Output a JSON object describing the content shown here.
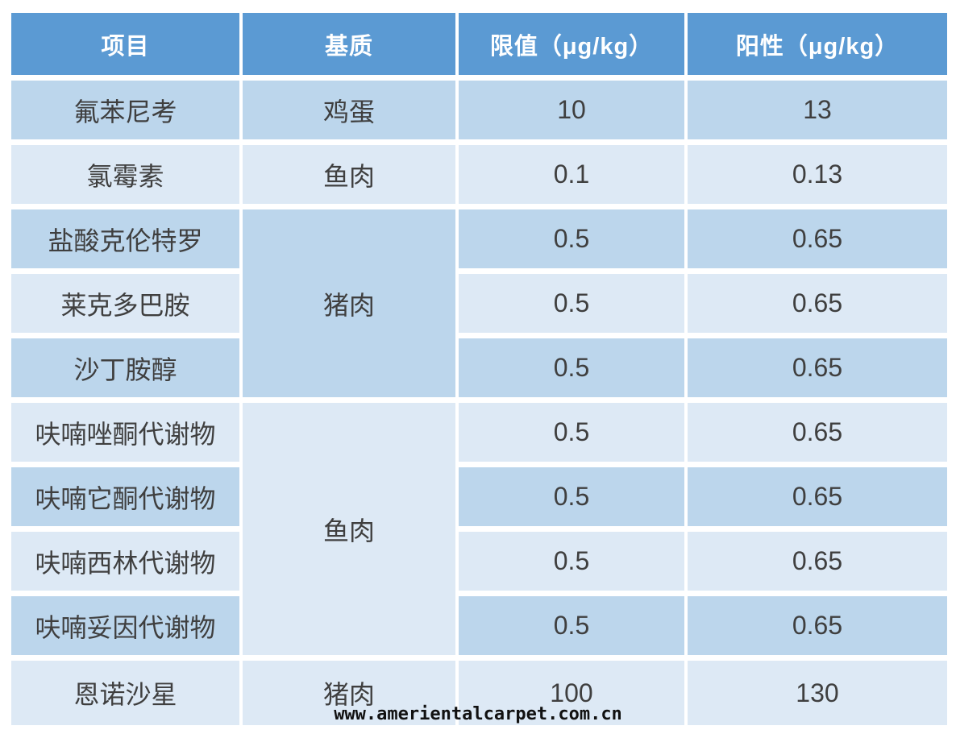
{
  "colors": {
    "header_bg": "#5b9ad3",
    "band_medium": "#bcd6ec",
    "band_light": "#dde9f5",
    "header_text": "#ffffff",
    "body_text": "#3f3f3f"
  },
  "table": {
    "headers": [
      "项目",
      "基质",
      "限值（μg/kg）",
      "阳性（μg/kg）"
    ],
    "rows": [
      {
        "item": "氟苯尼考",
        "matrix": "鸡蛋",
        "limit": "10",
        "positive": "13"
      },
      {
        "item": "氯霉素",
        "matrix": "鱼肉",
        "limit": "0.1",
        "positive": "0.13"
      },
      {
        "item": "盐酸克伦特罗",
        "matrix": "猪肉",
        "matrix_rowspan": 3,
        "limit": "0.5",
        "positive": "0.65"
      },
      {
        "item": "莱克多巴胺",
        "limit": "0.5",
        "positive": "0.65"
      },
      {
        "item": "沙丁胺醇",
        "limit": "0.5",
        "positive": "0.65"
      },
      {
        "item": "呋喃唑酮代谢物",
        "matrix": "鱼肉",
        "matrix_rowspan": 4,
        "limit": "0.5",
        "positive": "0.65"
      },
      {
        "item": "呋喃它酮代谢物",
        "limit": "0.5",
        "positive": "0.65"
      },
      {
        "item": "呋喃西林代谢物",
        "limit": "0.5",
        "positive": "0.65"
      },
      {
        "item": "呋喃妥因代谢物",
        "limit": "0.5",
        "positive": "0.65"
      },
      {
        "item": "恩诺沙星",
        "matrix": "猪肉",
        "limit": "100",
        "positive": "130"
      }
    ]
  },
  "watermark": "www.amerientalcarpet.com.cn"
}
